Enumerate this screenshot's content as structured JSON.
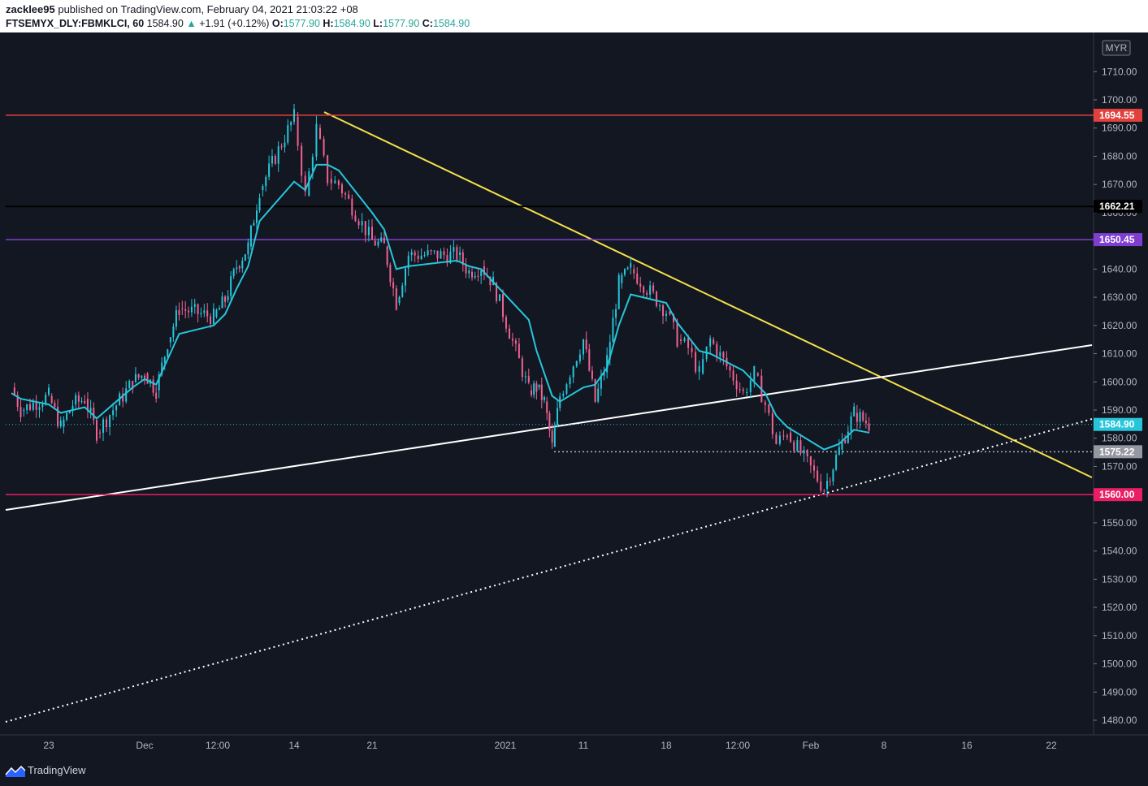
{
  "header": {
    "publisher": "zacklee95",
    "published_text": " published on TradingView.com, February 04, 2021 21:03:22 +08",
    "symbol": "FTSEMYX_DLY:FBMKLCI, 60",
    "last": "1584.90",
    "change": "+1.91 (+0.12%)",
    "open_label": "O:",
    "open": "1577.90",
    "high_label": "H:",
    "high": "1584.90",
    "low_label": "L:",
    "low": "1577.90",
    "close_label": "C:",
    "close": "1584.90"
  },
  "footer": {
    "brand": "TradingView"
  },
  "chart_data": {
    "type": "candlestick",
    "currency": "MYR",
    "price_axis": {
      "ticks": [
        "1710.00",
        "1700.00",
        "1690.00",
        "1680.00",
        "1670.00",
        "1660.00",
        "1640.00",
        "1630.00",
        "1620.00",
        "1610.00",
        "1600.00",
        "1590.00",
        "1580.00",
        "1570.00",
        "1550.00",
        "1540.00",
        "1530.00",
        "1520.00",
        "1510.00",
        "1500.00",
        "1490.00",
        "1480.00"
      ],
      "range": [
        1473,
        1720
      ]
    },
    "time_axis": {
      "ticks": [
        "23",
        "Dec",
        "12:00",
        "14",
        "21",
        "2021",
        "11",
        "18",
        "12:00",
        "Feb",
        "8",
        "16",
        "22"
      ]
    },
    "horizontal_levels": [
      {
        "value": 1694.55,
        "label": "1694.55",
        "color": "#e0413c"
      },
      {
        "value": 1662.21,
        "label": "1662.21",
        "color": "#000000"
      },
      {
        "value": 1650.45,
        "label": "1650.45",
        "color": "#7e3fd1"
      },
      {
        "value": 1560.0,
        "label": "1560.00",
        "color": "#e91e63"
      }
    ],
    "last_price": {
      "value": 1584.9,
      "label": "1584.90",
      "color": "#26c6da"
    },
    "support_dotted": {
      "value": 1575.22,
      "label": "1575.22"
    },
    "trendlines": [
      {
        "name": "downtrend",
        "color": "#f5e04a",
        "style": "solid",
        "from_date": "2020-12-16",
        "from_value": 1695.5,
        "to_date": "2021-02-20",
        "to_value": 1566
      },
      {
        "name": "rising support",
        "color": "#ffffff",
        "style": "solid",
        "from_date": "2020-11-19",
        "from_value": 1555,
        "to_date": "2021-02-20",
        "to_value": 1613
      },
      {
        "name": "long-term support",
        "color": "#ffffff",
        "style": "dotted",
        "from_date": "2020-11-19",
        "from_value": 1479,
        "to_date": "2021-02-20",
        "to_value": 1587
      }
    ],
    "series": [
      {
        "role": "close",
        "color_up": "#26c6da",
        "color_down": "#f06292",
        "points": [
          {
            "x": "2020-11-19",
            "y": 1598
          },
          {
            "x": "2020-11-20",
            "y": 1590
          },
          {
            "x": "2020-11-23",
            "y": 1595
          },
          {
            "x": "2020-11-24",
            "y": 1584
          },
          {
            "x": "2020-11-25",
            "y": 1592
          },
          {
            "x": "2020-11-26",
            "y": 1594
          },
          {
            "x": "2020-11-27",
            "y": 1582
          },
          {
            "x": "2020-11-30",
            "y": 1600
          },
          {
            "x": "2020-12-01",
            "y": 1603
          },
          {
            "x": "2020-12-02",
            "y": 1597
          },
          {
            "x": "2020-12-03",
            "y": 1614
          },
          {
            "x": "2020-12-04",
            "y": 1626
          },
          {
            "x": "2020-12-07",
            "y": 1623
          },
          {
            "x": "2020-12-08",
            "y": 1629
          },
          {
            "x": "2020-12-09",
            "y": 1641
          },
          {
            "x": "2020-12-10",
            "y": 1648
          },
          {
            "x": "2020-12-11",
            "y": 1668
          },
          {
            "x": "2020-12-14",
            "y": 1694
          },
          {
            "x": "2020-12-15",
            "y": 1666
          },
          {
            "x": "2020-12-16",
            "y": 1690
          },
          {
            "x": "2020-12-17",
            "y": 1672
          },
          {
            "x": "2020-12-18",
            "y": 1670
          },
          {
            "x": "2020-12-21",
            "y": 1650
          },
          {
            "x": "2020-12-22",
            "y": 1648
          },
          {
            "x": "2020-12-23",
            "y": 1628
          },
          {
            "x": "2020-12-24",
            "y": 1645
          },
          {
            "x": "2020-12-28",
            "y": 1645
          },
          {
            "x": "2020-12-29",
            "y": 1639
          },
          {
            "x": "2020-12-30",
            "y": 1641
          },
          {
            "x": "2020-12-31",
            "y": 1635
          },
          {
            "x": "2021-01-04",
            "y": 1597
          },
          {
            "x": "2021-01-05",
            "y": 1598
          },
          {
            "x": "2021-01-06",
            "y": 1593
          },
          {
            "x": "2021-01-07",
            "y": 1577
          },
          {
            "x": "2021-01-08",
            "y": 1595
          },
          {
            "x": "2021-01-11",
            "y": 1615
          },
          {
            "x": "2021-01-12",
            "y": 1593
          },
          {
            "x": "2021-01-13",
            "y": 1608
          },
          {
            "x": "2021-01-14",
            "y": 1635
          },
          {
            "x": "2021-01-15",
            "y": 1640
          },
          {
            "x": "2021-01-18",
            "y": 1625
          },
          {
            "x": "2021-01-19",
            "y": 1615
          },
          {
            "x": "2021-01-20",
            "y": 1612
          },
          {
            "x": "2021-01-21",
            "y": 1603
          },
          {
            "x": "2021-01-22",
            "y": 1615
          },
          {
            "x": "2021-01-25",
            "y": 1596
          },
          {
            "x": "2021-01-26",
            "y": 1603
          },
          {
            "x": "2021-01-27",
            "y": 1592
          },
          {
            "x": "2021-01-28",
            "y": 1578
          },
          {
            "x": "2021-01-29",
            "y": 1582
          },
          {
            "x": "2021-02-01",
            "y": 1562
          },
          {
            "x": "2021-02-02",
            "y": 1576
          },
          {
            "x": "2021-02-03",
            "y": 1589
          },
          {
            "x": "2021-02-04",
            "y": 1584.9
          }
        ]
      },
      {
        "role": "moving average",
        "color": "#26c6da",
        "points": [
          {
            "x": "2020-11-19",
            "y": 1596
          },
          {
            "x": "2020-11-20",
            "y": 1594
          },
          {
            "x": "2020-11-23",
            "y": 1592
          },
          {
            "x": "2020-11-24",
            "y": 1589
          },
          {
            "x": "2020-11-25",
            "y": 1590
          },
          {
            "x": "2020-11-26",
            "y": 1591
          },
          {
            "x": "2020-11-27",
            "y": 1587
          },
          {
            "x": "2020-11-30",
            "y": 1598
          },
          {
            "x": "2020-12-01",
            "y": 1601
          },
          {
            "x": "2020-12-02",
            "y": 1599
          },
          {
            "x": "2020-12-03",
            "y": 1608
          },
          {
            "x": "2020-12-04",
            "y": 1617
          },
          {
            "x": "2020-12-07",
            "y": 1620
          },
          {
            "x": "2020-12-08",
            "y": 1624
          },
          {
            "x": "2020-12-09",
            "y": 1633
          },
          {
            "x": "2020-12-10",
            "y": 1641
          },
          {
            "x": "2020-12-11",
            "y": 1657
          },
          {
            "x": "2020-12-14",
            "y": 1671
          },
          {
            "x": "2020-12-15",
            "y": 1668
          },
          {
            "x": "2020-12-16",
            "y": 1677
          },
          {
            "x": "2020-12-17",
            "y": 1677
          },
          {
            "x": "2020-12-18",
            "y": 1675
          },
          {
            "x": "2020-12-21",
            "y": 1660
          },
          {
            "x": "2020-12-22",
            "y": 1654
          },
          {
            "x": "2020-12-23",
            "y": 1640
          },
          {
            "x": "2020-12-24",
            "y": 1641
          },
          {
            "x": "2020-12-28",
            "y": 1643
          },
          {
            "x": "2020-12-29",
            "y": 1641
          },
          {
            "x": "2020-12-30",
            "y": 1640
          },
          {
            "x": "2021-01-04",
            "y": 1622
          },
          {
            "x": "2021-01-05",
            "y": 1611
          },
          {
            "x": "2021-01-06",
            "y": 1603
          },
          {
            "x": "2021-01-07",
            "y": 1595
          },
          {
            "x": "2021-01-08",
            "y": 1593
          },
          {
            "x": "2021-01-11",
            "y": 1598
          },
          {
            "x": "2021-01-12",
            "y": 1599
          },
          {
            "x": "2021-01-13",
            "y": 1605
          },
          {
            "x": "2021-01-14",
            "y": 1620
          },
          {
            "x": "2021-01-15",
            "y": 1631
          },
          {
            "x": "2021-01-18",
            "y": 1628
          },
          {
            "x": "2021-01-19",
            "y": 1621
          },
          {
            "x": "2021-01-20",
            "y": 1616
          },
          {
            "x": "2021-01-21",
            "y": 1611
          },
          {
            "x": "2021-01-22",
            "y": 1610
          },
          {
            "x": "2021-01-25",
            "y": 1604
          },
          {
            "x": "2021-01-26",
            "y": 1600
          },
          {
            "x": "2021-01-27",
            "y": 1596
          },
          {
            "x": "2021-01-28",
            "y": 1588
          },
          {
            "x": "2021-01-29",
            "y": 1584
          },
          {
            "x": "2021-02-01",
            "y": 1576
          },
          {
            "x": "2021-02-02",
            "y": 1578
          },
          {
            "x": "2021-02-03",
            "y": 1583
          },
          {
            "x": "2021-02-04",
            "y": 1582
          }
        ]
      }
    ]
  }
}
